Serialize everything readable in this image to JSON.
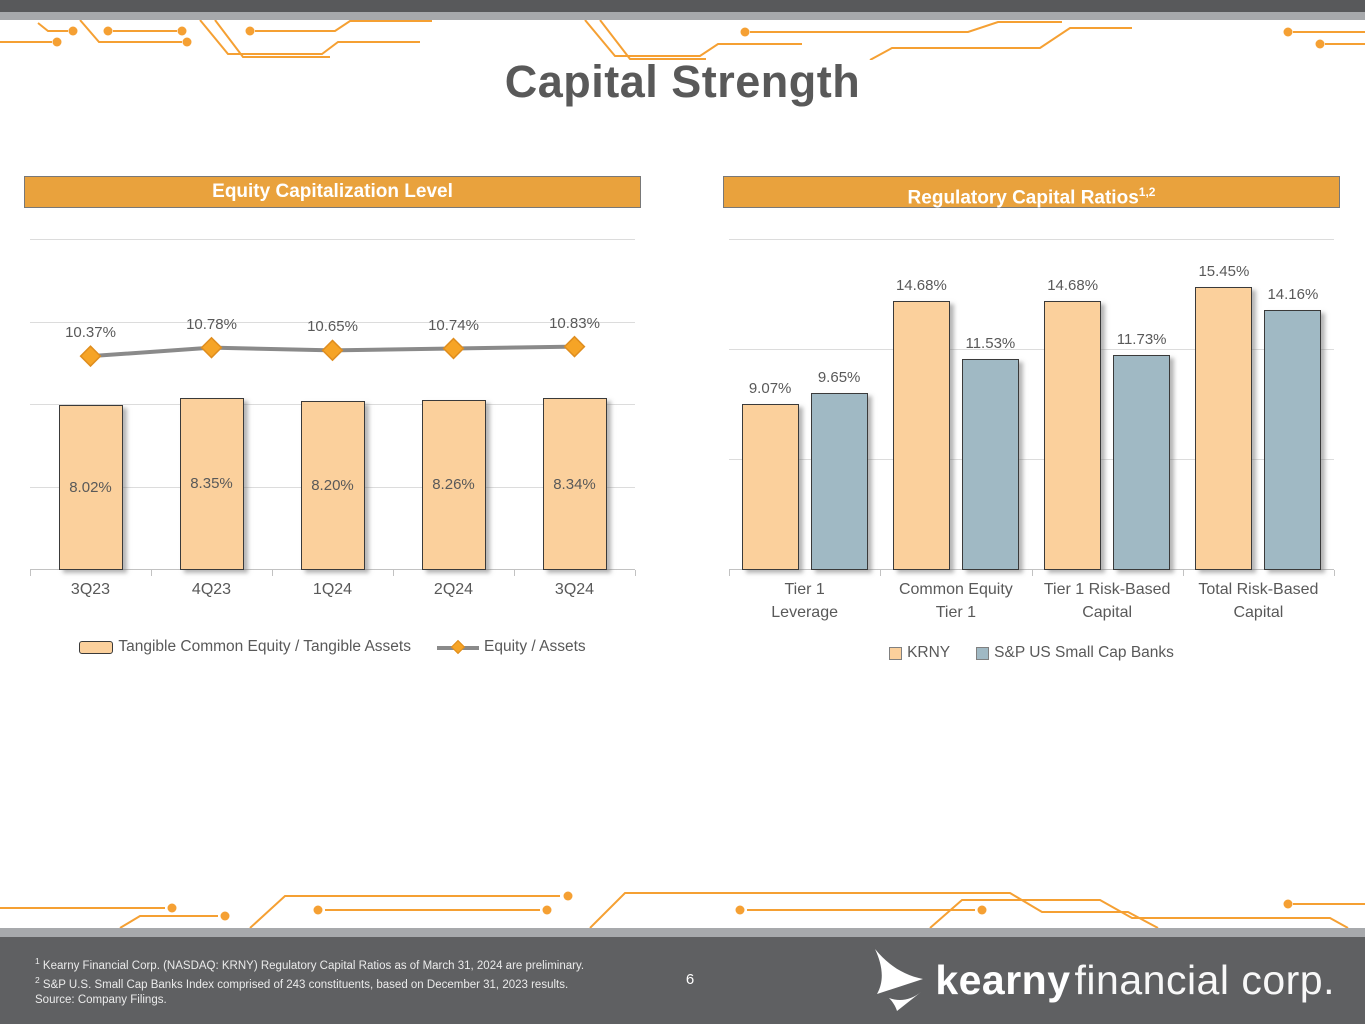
{
  "title": "Capital Strength",
  "page_number": "6",
  "chart_data": [
    {
      "type": "combo-bar-line",
      "title": "Equity Capitalization Level",
      "categories": [
        "3Q23",
        "4Q23",
        "1Q24",
        "2Q24",
        "3Q24"
      ],
      "series": [
        {
          "name": "Tangible Common Equity / Tangible Assets",
          "kind": "bar",
          "values": [
            8.02,
            8.35,
            8.2,
            8.26,
            8.34
          ],
          "labels": [
            "8.02%",
            "8.35%",
            "8.20%",
            "8.26%",
            "8.34%"
          ],
          "color": "#FBD09C"
        },
        {
          "name": "Equity / Assets",
          "kind": "line",
          "values": [
            10.37,
            10.78,
            10.65,
            10.74,
            10.83
          ],
          "labels": [
            "10.37%",
            "10.78%",
            "10.65%",
            "10.74%",
            "10.83%"
          ],
          "color": "#8A8A8A",
          "marker_color": "#F6A426"
        }
      ],
      "ylim": [
        0,
        16
      ],
      "gridline_step": 4,
      "grid": true,
      "legend_position": "bottom"
    },
    {
      "type": "bar",
      "title": "Regulatory Capital Ratios",
      "title_sup": "1,2",
      "categories": [
        [
          "Tier 1",
          "Leverage"
        ],
        [
          "Common Equity",
          "Tier 1"
        ],
        [
          "Tier 1 Risk-Based",
          "Capital"
        ],
        [
          "Total Risk-Based",
          "Capital"
        ]
      ],
      "series": [
        {
          "name": "KRNY",
          "values": [
            9.07,
            14.68,
            14.68,
            15.45
          ],
          "labels": [
            "9.07%",
            "14.68%",
            "14.68%",
            "15.45%"
          ],
          "color": "#FBD09C"
        },
        {
          "name": "S&P US Small Cap Banks",
          "values": [
            9.65,
            11.53,
            11.73,
            14.16
          ],
          "labels": [
            "9.65%",
            "11.53%",
            "11.73%",
            "14.16%"
          ],
          "color": "#A0B9C4"
        }
      ],
      "ylim": [
        0,
        18
      ],
      "gridline_step": 6,
      "grid": true,
      "legend_position": "bottom"
    }
  ],
  "footer": {
    "notes": [
      {
        "sup": "1",
        "text": " Kearny Financial Corp. (NASDAQ: KRNY) Regulatory Capital Ratios as of March 31, 2024 are preliminary."
      },
      {
        "sup": "2",
        "text": " S&P U.S. Small Cap Banks Index comprised of 243 constituents, based on December 31, 2023 results."
      },
      {
        "sup": "",
        "text": "Source: Company Filings."
      }
    ],
    "logo": {
      "brand_bold": "kearny",
      "brand_light": "financial corp."
    }
  },
  "colors": {
    "accent_orange": "#E9A23D",
    "circuit_orange": "#F5A033",
    "bar_orange": "#FBD09C",
    "bar_blue": "#A0B9C4",
    "line_gray": "#8A8A8A",
    "marker_orange": "#F6A426",
    "title_gray": "#595959",
    "chrome_dark": "#58595B",
    "chrome_light": "#A7A9AC",
    "footer_bg": "#5F6062"
  }
}
